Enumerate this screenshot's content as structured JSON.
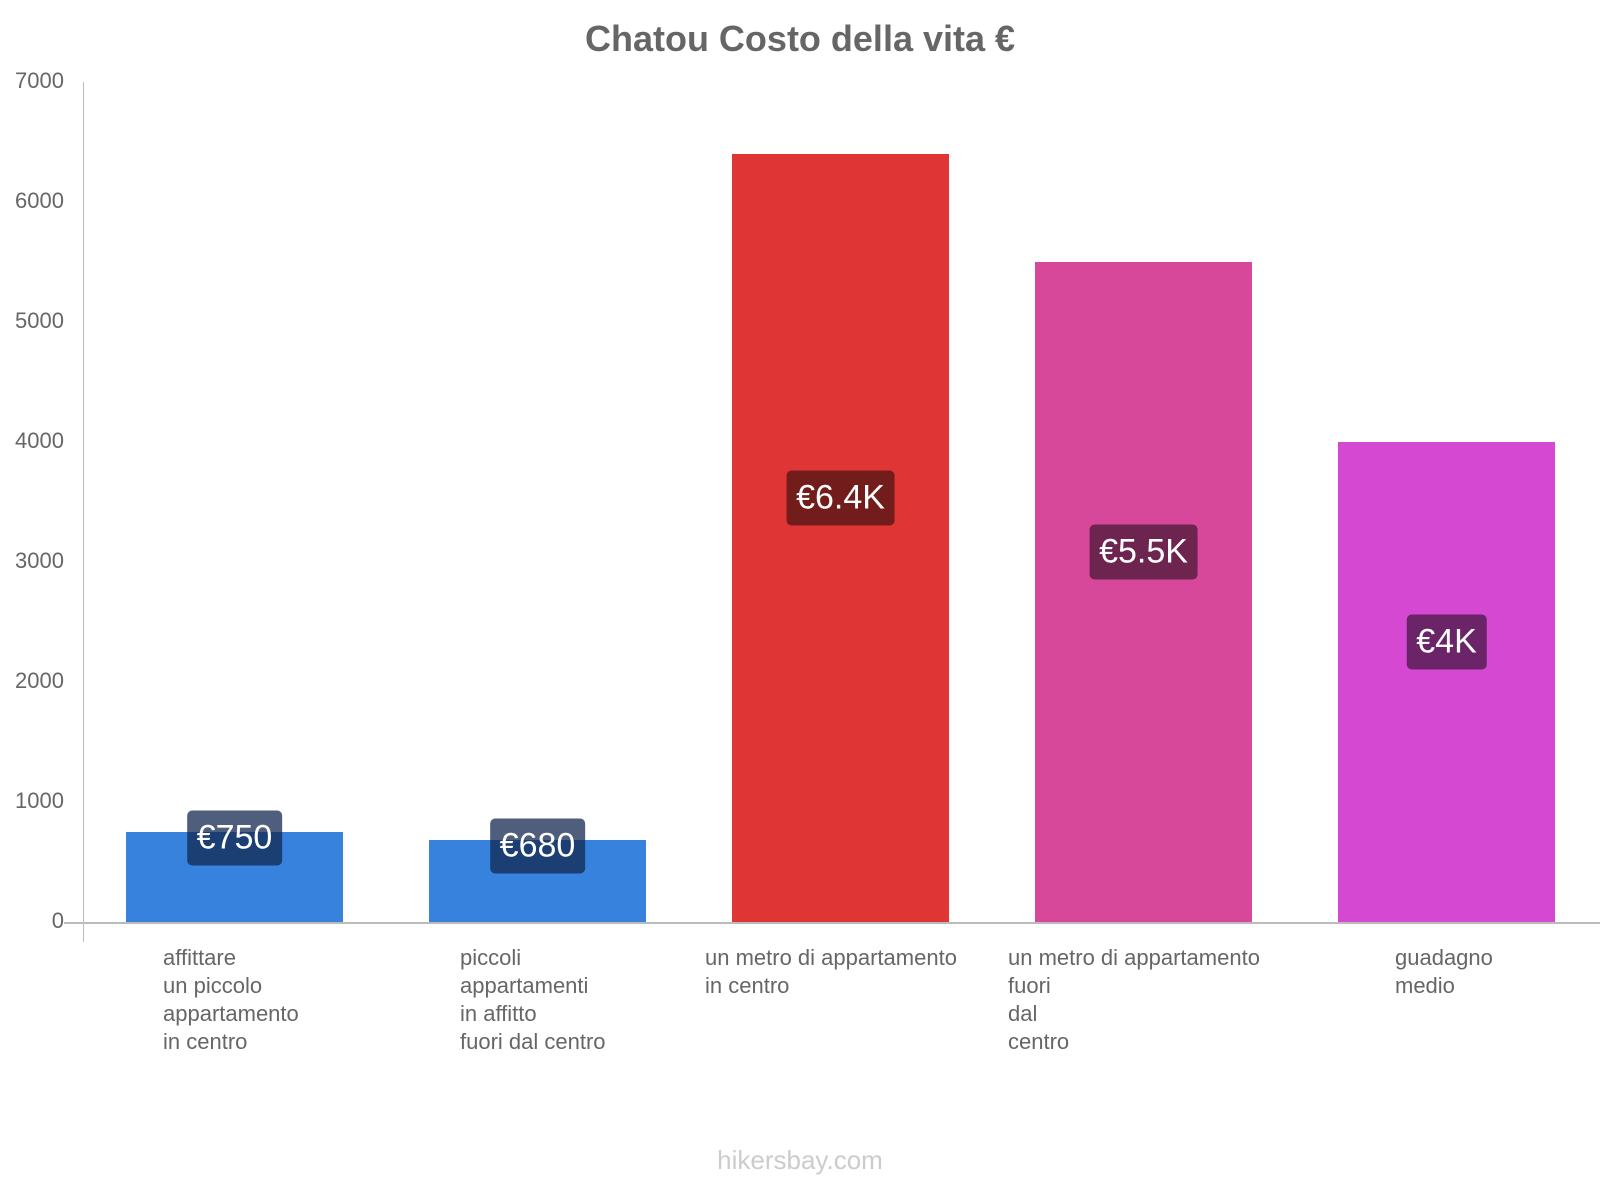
{
  "chart_data": {
    "type": "bar",
    "title": "Chatou Costo della vita €",
    "xlabel": "",
    "ylabel": "",
    "ylim": [
      0,
      7000
    ],
    "yticks": [
      0,
      1000,
      2000,
      3000,
      4000,
      5000,
      6000,
      7000
    ],
    "grid": false,
    "legend": null,
    "categories": [
      "affittare un piccolo appartamento in centro",
      "piccoli appartamenti in affitto fuori dal centro",
      "un metro di appartamento in centro",
      "un metro di appartamento fuori dal centro",
      "guadagno medio"
    ],
    "values": [
      750,
      680,
      6400,
      5500,
      4000
    ],
    "data_labels": [
      "€750",
      "€680",
      "€6.4K",
      "€5.5K",
      "€4K"
    ],
    "colors": [
      "#3682dc",
      "#3682dc",
      "#e03535",
      "#d8489a",
      "#d548d2"
    ]
  },
  "title": "Chatou Costo della vita €",
  "yaxis": {
    "ticks": [
      "0",
      "1000",
      "2000",
      "3000",
      "4000",
      "5000",
      "6000",
      "7000"
    ]
  },
  "bars": [
    {
      "label_lines": "affittare\nun piccolo\nappartamento\nin centro",
      "badge": "€750",
      "value": 750,
      "color": "#3682dc",
      "badge_color": "rgba(20,40,80,0.75)"
    },
    {
      "label_lines": "piccoli\nappartamenti\nin affitto\nfuori dal centro",
      "badge": "€680",
      "value": 680,
      "color": "#3682dc",
      "badge_color": "rgba(20,40,80,0.75)"
    },
    {
      "label_lines": "un metro di appartamento\nin centro",
      "badge": "€6.4K",
      "value": 6400,
      "color": "#e03535",
      "badge_color": "#721c1c"
    },
    {
      "label_lines": "un metro di appartamento\nfuori\ndal\ncentro",
      "badge": "€5.5K",
      "value": 5500,
      "color": "#d8489a",
      "badge_color": "#6d244f"
    },
    {
      "label_lines": "guadagno\nmedio",
      "badge": "€4K",
      "value": 4000,
      "color": "#d548d2",
      "badge_color": "#6b2468"
    }
  ],
  "watermark": "hikersbay.com"
}
